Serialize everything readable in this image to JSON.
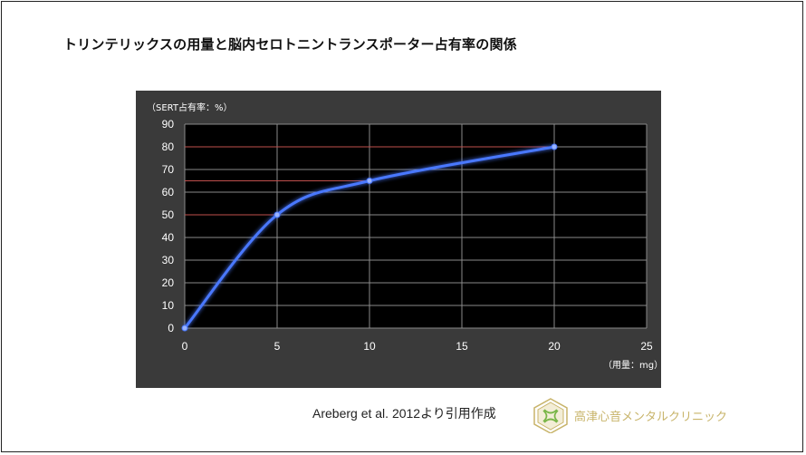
{
  "title": "トリンテリックスの用量と脳内セロトニントランスポーター占有率の関係",
  "source": "Areberg et al. 2012より引用作成",
  "clinic_name": "高津心音メンタルクリニック",
  "colors": {
    "panel_bg": "#3a3a3a",
    "plot_bg": "#000000",
    "grid": "#8a8a8a",
    "line": "#4a78ff",
    "reference_line": "#c0504d",
    "logo": "#c8b46a"
  },
  "chart_data": {
    "type": "line",
    "ylabel": "（SERT占有率：%）",
    "xlabel": "（用量：mg）",
    "xlim": [
      0,
      25
    ],
    "ylim": [
      0,
      90
    ],
    "xticks": [
      0,
      5,
      10,
      15,
      20,
      25
    ],
    "yticks": [
      0,
      10,
      20,
      30,
      40,
      50,
      60,
      70,
      80,
      90
    ],
    "grid": true,
    "series": [
      {
        "x": [
          0,
          5,
          10,
          20
        ],
        "y": [
          0,
          50,
          65,
          80
        ],
        "smooth": true
      }
    ],
    "reference_lines": [
      {
        "y": 50,
        "x_to": 5
      },
      {
        "y": 65,
        "x_to": 10
      },
      {
        "y": 80,
        "x_to": 20
      }
    ]
  }
}
